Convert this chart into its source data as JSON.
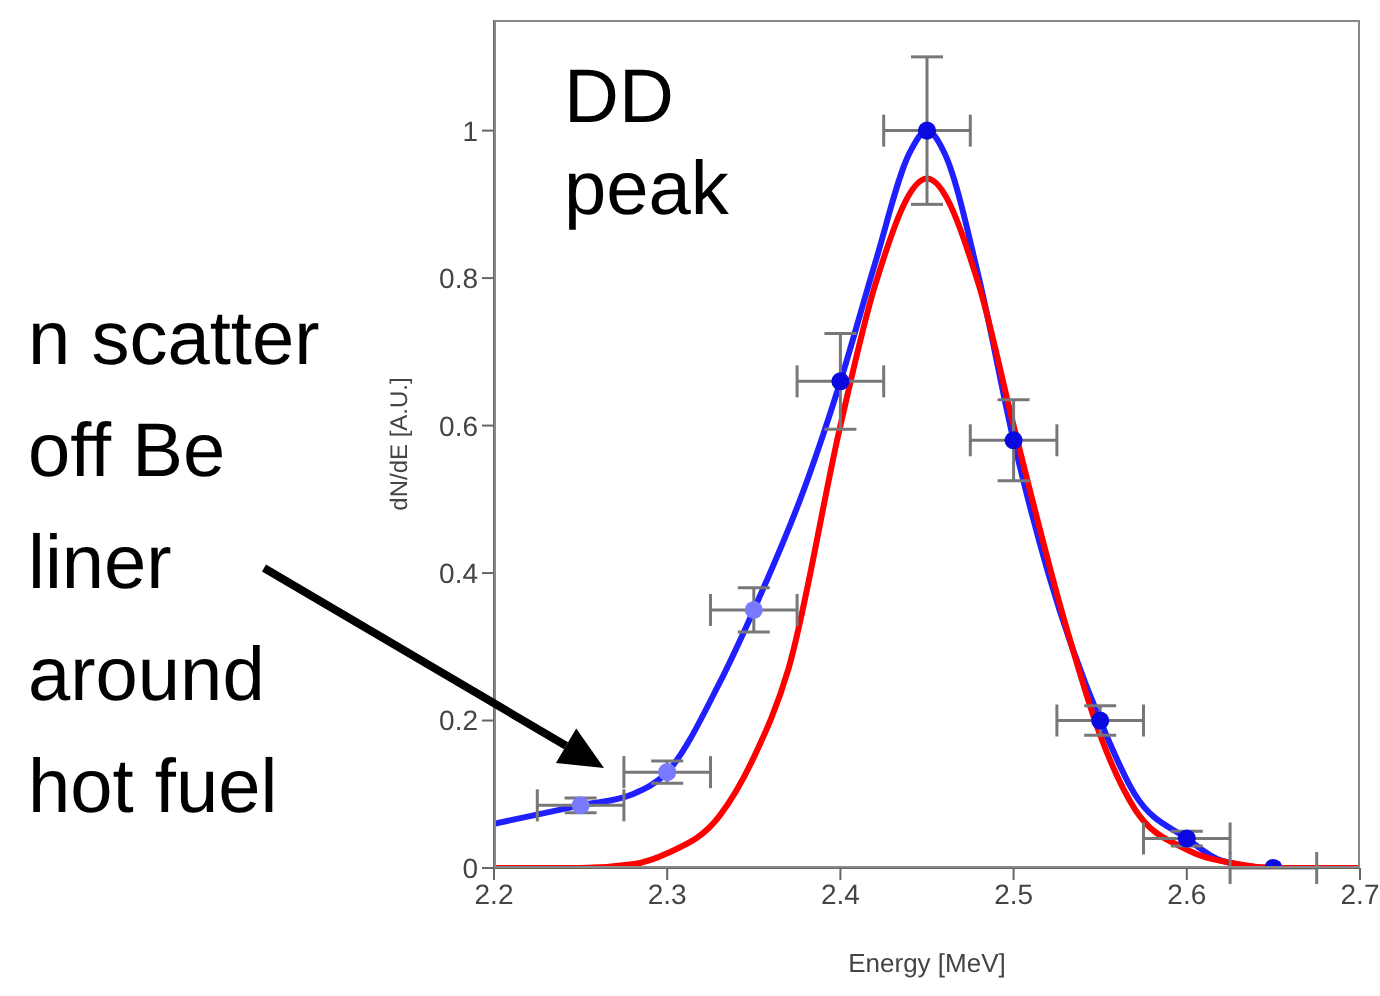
{
  "chart_data": {
    "type": "line",
    "xlabel": "Energy [MeV]",
    "ylabel": "dN/dE [A.U.]",
    "xlim": [
      2.2,
      2.7
    ],
    "xticks": [
      2.2,
      2.3,
      2.4,
      2.5,
      2.6,
      2.7
    ],
    "ylim": [
      0,
      1.15
    ],
    "yticks": [
      0,
      0.2,
      0.4,
      0.6,
      0.8,
      1
    ],
    "series": [
      {
        "color": "#1f1fff",
        "marker": "none",
        "x": [
          2.2,
          2.25,
          2.28,
          2.3,
          2.33,
          2.35,
          2.38,
          2.4,
          2.42,
          2.44,
          2.45,
          2.46,
          2.48,
          2.5,
          2.52,
          2.55,
          2.57,
          2.6,
          2.62,
          2.65,
          2.7
        ],
        "values": [
          0.06,
          0.085,
          0.1,
          0.13,
          0.25,
          0.35,
          0.52,
          0.66,
          0.82,
          0.97,
          1.0,
          0.97,
          0.8,
          0.58,
          0.4,
          0.2,
          0.1,
          0.04,
          0.01,
          0.0,
          0.0
        ]
      },
      {
        "color": "#ff0000",
        "marker": "none",
        "x": [
          2.2,
          2.25,
          2.28,
          2.3,
          2.33,
          2.35,
          2.37,
          2.4,
          2.42,
          2.45,
          2.48,
          2.5,
          2.53,
          2.55,
          2.57,
          2.6,
          2.63,
          2.65,
          2.7
        ],
        "values": [
          0,
          0,
          0.005,
          0.02,
          0.07,
          0.15,
          0.27,
          0.6,
          0.79,
          0.935,
          0.79,
          0.6,
          0.33,
          0.18,
          0.08,
          0.025,
          0.005,
          0,
          0
        ]
      },
      {
        "type": "scatter",
        "color": "#7a7aff",
        "marker": "circle",
        "x": [
          2.25,
          2.3,
          2.35
        ],
        "values": [
          0.085,
          0.13,
          0.35
        ],
        "errors": [
          0.01,
          0.015,
          0.03
        ],
        "xerrors": [
          0.025,
          0.025,
          0.025
        ]
      },
      {
        "type": "scatter",
        "color": "#0a0ae0",
        "marker": "circle",
        "x": [
          2.4,
          2.45,
          2.5,
          2.55,
          2.6,
          2.65
        ],
        "values": [
          0.66,
          1.0,
          0.58,
          0.2,
          0.04,
          0.0
        ],
        "errors": [
          0.065,
          0.1,
          0.055,
          0.02,
          0.01,
          0
        ],
        "xerrors": [
          0.025,
          0.025,
          0.025,
          0.025,
          0.025,
          0.025
        ]
      }
    ],
    "annotations": [
      "DD peak",
      "n scatter off Be liner around hot fuel"
    ]
  }
}
